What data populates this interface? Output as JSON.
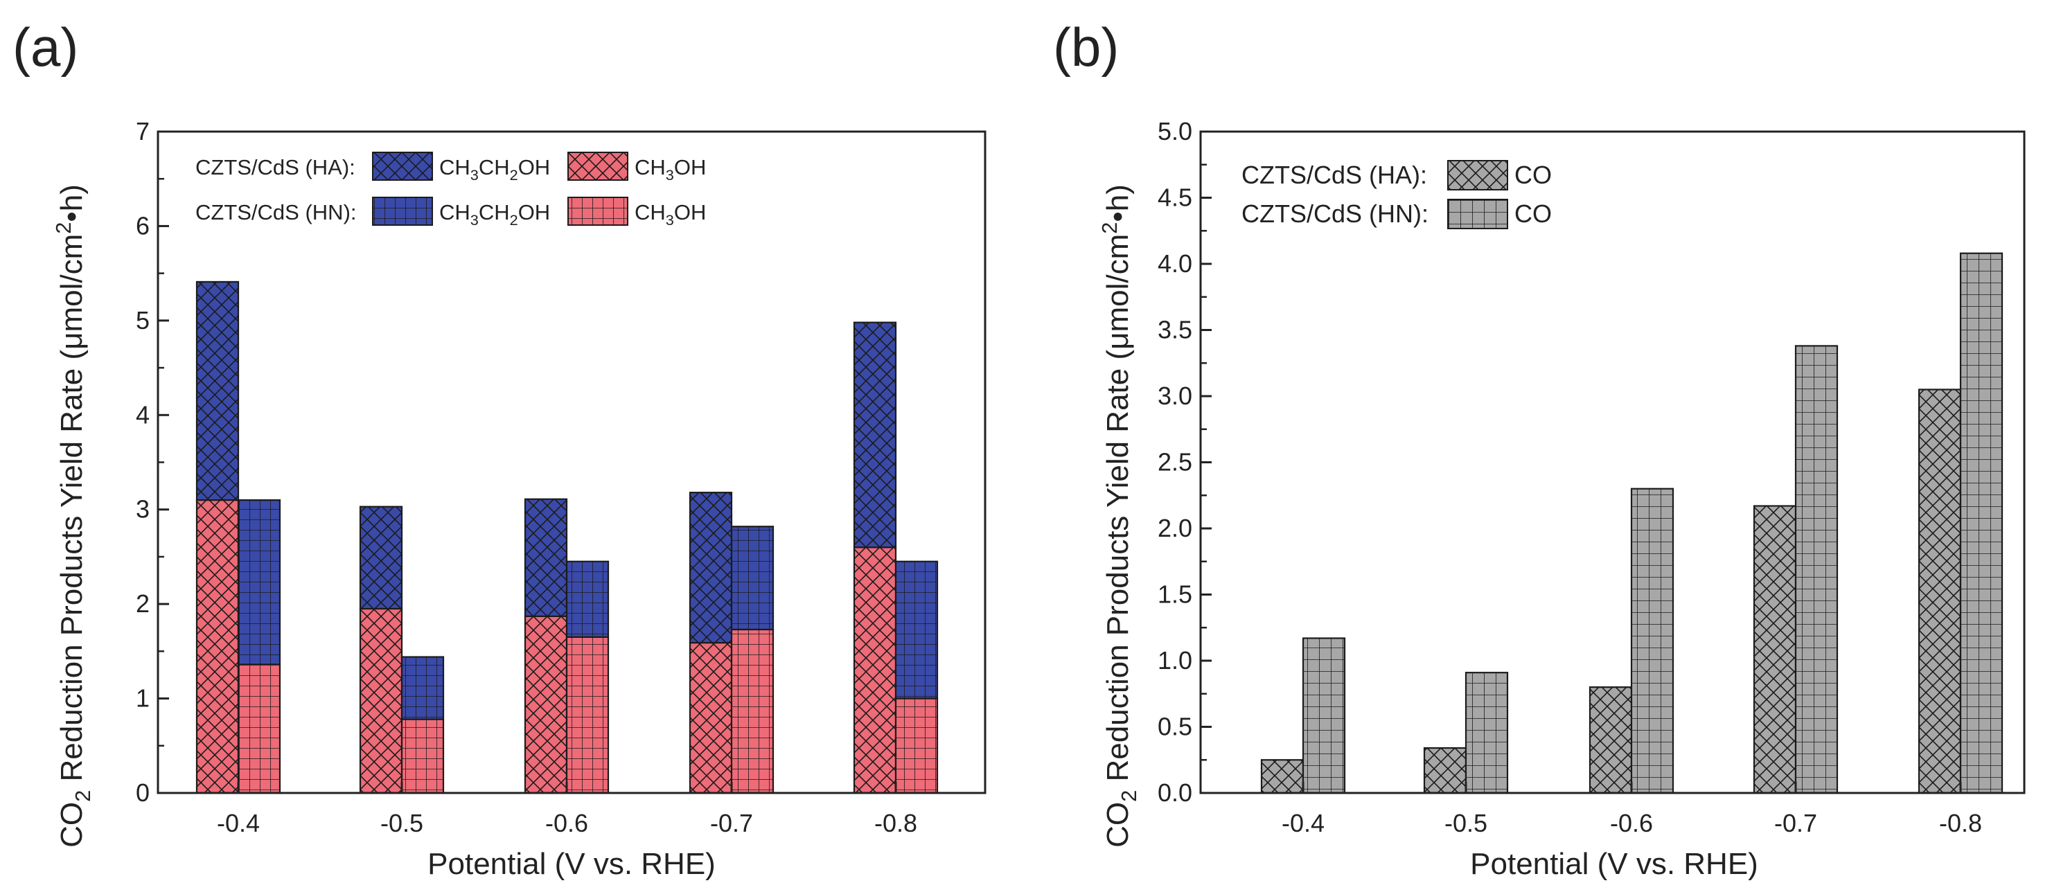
{
  "figure": {
    "panel_a_label": "(a)",
    "panel_b_label": "(b)"
  },
  "colors": {
    "blue": "#3a4aa8",
    "red": "#ee6b78",
    "gray": "#a7a7a7",
    "axis": "#222222"
  },
  "chart_data": [
    {
      "panel": "(a)",
      "type": "bar",
      "stacked": true,
      "title": "",
      "xlabel": "Potential (V vs. RHE)",
      "ylabel": "CO2 Reduction Products Yield Rate (μmol/cm2•h)",
      "ylabel_parts": {
        "pre": "CO",
        "sub": "2",
        "mid": " Reduction Products Yield Rate (μmol/cm",
        "sup": "2",
        "post": "•h)"
      },
      "categories": [
        "-0.4",
        "-0.5",
        "-0.6",
        "-0.7",
        "-0.8"
      ],
      "ylim": [
        0,
        7
      ],
      "yticks": [
        "0",
        "1",
        "2",
        "3",
        "4",
        "5",
        "6",
        "7"
      ],
      "groups": [
        {
          "sample": "CZTS/CdS (HA):",
          "pattern": "crosshatch",
          "series": [
            {
              "name": "CH3OH",
              "color_key": "red",
              "values": [
                3.1,
                1.95,
                1.87,
                1.59,
                2.6
              ]
            },
            {
              "name": "CH3CH2OH",
              "color_key": "blue",
              "values": [
                2.31,
                1.08,
                1.24,
                1.59,
                2.38
              ]
            }
          ]
        },
        {
          "sample": "CZTS/CdS (HN):",
          "pattern": "grid",
          "series": [
            {
              "name": "CH3OH",
              "color_key": "red",
              "values": [
                1.36,
                0.78,
                1.65,
                1.73,
                1.0
              ]
            },
            {
              "name": "CH3CH2OH",
              "color_key": "blue",
              "values": [
                1.74,
                0.66,
                0.8,
                1.09,
                1.45
              ]
            }
          ]
        }
      ],
      "totals_ha": [
        5.41,
        3.03,
        3.11,
        3.18,
        4.98
      ],
      "totals_hn": [
        3.1,
        1.44,
        2.45,
        2.82,
        2.45
      ],
      "legend": {
        "row1_label": "CZTS/CdS (HA):",
        "row2_label": "CZTS/CdS (HN):",
        "ethanol_parts": {
          "a": "CH",
          "b": "3",
          "c": "CH",
          "d": "2",
          "e": "OH"
        },
        "methanol_parts": {
          "a": "CH",
          "b": "3",
          "c": "OH"
        },
        "placement": "top-left"
      }
    },
    {
      "panel": "(b)",
      "type": "bar",
      "stacked": false,
      "title": "",
      "xlabel": "Potential (V vs. RHE)",
      "ylabel": "CO2 Reduction Products Yield Rate (μmol/cm2•h)",
      "ylabel_parts": {
        "pre": "CO",
        "sub": "2",
        "mid": " Reduction Products Yield Rate (μmol/cm",
        "sup": "2",
        "post": "•h)"
      },
      "categories": [
        "-0.4",
        "-0.5",
        "-0.6",
        "-0.7",
        "-0.8"
      ],
      "ylim": [
        0,
        5
      ],
      "yticks": [
        "0.0",
        "0.5",
        "1.0",
        "1.5",
        "2.0",
        "2.5",
        "3.0",
        "3.5",
        "4.0",
        "4.5",
        "5.0"
      ],
      "series": [
        {
          "name": "CZTS/CdS (HA): CO",
          "sample": "CZTS/CdS (HA):",
          "product": "CO",
          "pattern": "crosshatch",
          "color_key": "gray",
          "values": [
            0.25,
            0.34,
            0.8,
            2.17,
            3.05
          ]
        },
        {
          "name": "CZTS/CdS (HN): CO",
          "sample": "CZTS/CdS (HN):",
          "product": "CO",
          "pattern": "grid",
          "color_key": "gray",
          "values": [
            1.17,
            0.91,
            2.3,
            3.38,
            4.08
          ]
        }
      ],
      "legend": {
        "placement": "top-left"
      }
    }
  ]
}
